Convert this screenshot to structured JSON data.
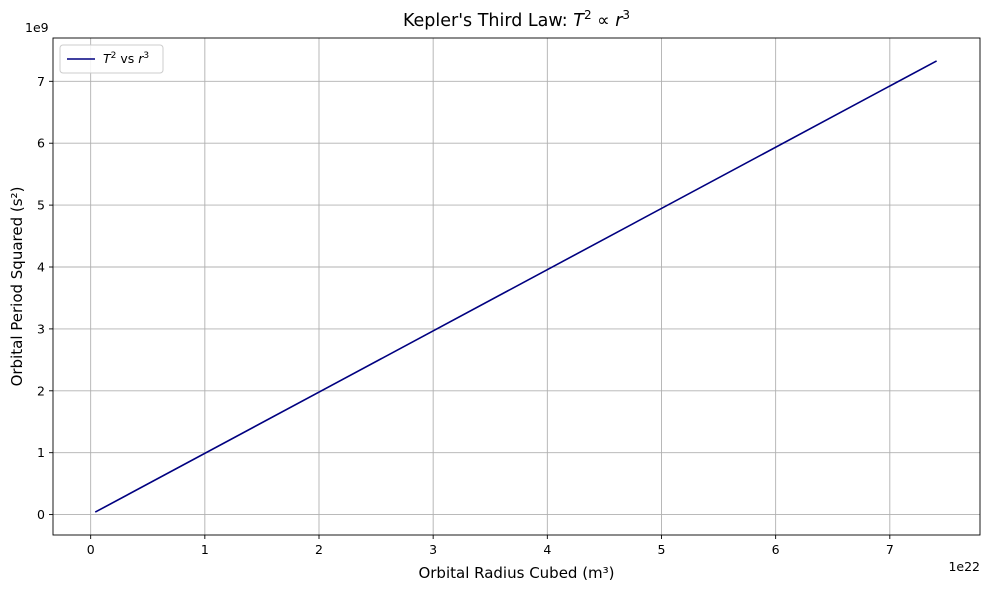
{
  "chart_data": {
    "type": "line",
    "title_text": "Kepler's Third Law: ",
    "title_math": [
      "T",
      "2",
      " ∝ ",
      "r",
      "3"
    ],
    "xlabel": "Orbital Radius Cubed (m³)",
    "ylabel": "Orbital Period Squared (s²)",
    "x_offset_label": "1e22",
    "y_offset_label": "1e9",
    "x_scale": 1e+22,
    "y_scale": 1000000000.0,
    "xlim": [
      -0.33,
      7.79
    ],
    "ylim": [
      -0.33,
      7.7
    ],
    "x_ticks": [
      0,
      1,
      2,
      3,
      4,
      5,
      6,
      7
    ],
    "x_tick_labels": [
      "0",
      "1",
      "2",
      "3",
      "4",
      "5",
      "6",
      "7"
    ],
    "y_ticks": [
      0,
      1,
      2,
      3,
      4,
      5,
      6,
      7
    ],
    "y_tick_labels": [
      "0",
      "1",
      "2",
      "3",
      "4",
      "5",
      "6",
      "7"
    ],
    "grid": true,
    "legend_position": "upper-left",
    "series": [
      {
        "name_parts": [
          "T",
          "2",
          " vs ",
          "r",
          "3"
        ],
        "color": "#000080",
        "x": [
          0.04,
          7.41
        ],
        "y": [
          0.04,
          7.33
        ]
      }
    ]
  }
}
